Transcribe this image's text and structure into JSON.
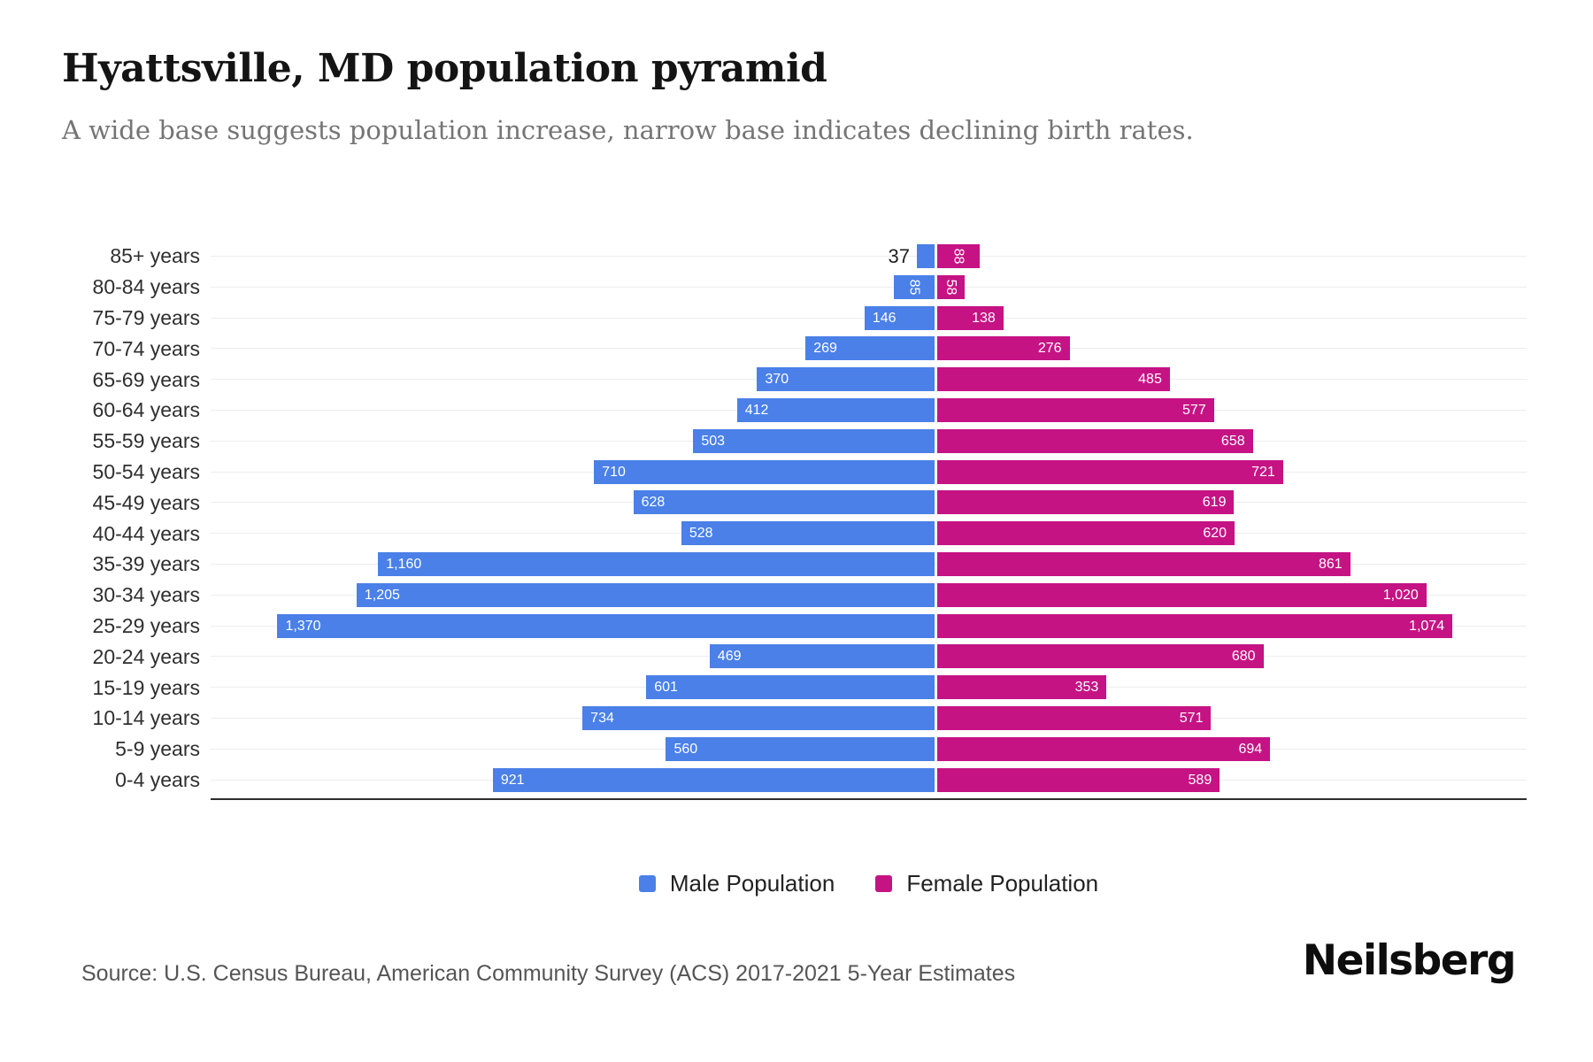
{
  "header": {
    "title": "Hyattsville, MD population pyramid",
    "subtitle": "A wide base suggests population increase, narrow base indicates declining birth rates."
  },
  "legend": {
    "male_label": "Male Population",
    "female_label": "Female Population"
  },
  "footer": {
    "source": "Source: U.S. Census Bureau, American Community Survey (ACS) 2017-2021 5-Year Estimates",
    "brand": "Neilsberg"
  },
  "colors": {
    "male": "#4a80e8",
    "female": "#c51384",
    "gridline": "#ededed",
    "axis": "#2d2d2d",
    "label_in_bar": "#ffffff",
    "label_outside": "#1f1f1f"
  },
  "chart_data": {
    "type": "bar",
    "variant": "population-pyramid",
    "title": "Hyattsville, MD population pyramid",
    "xlabel": "Population",
    "ylabel": "Age group",
    "grid": true,
    "legend_position": "bottom",
    "categories": [
      "85+ years",
      "80-84 years",
      "75-79 years",
      "70-74 years",
      "65-69 years",
      "60-64 years",
      "55-59 years",
      "50-54 years",
      "45-49 years",
      "40-44 years",
      "35-39 years",
      "30-34 years",
      "25-29 years",
      "20-24 years",
      "15-19 years",
      "10-14 years",
      "5-9 years",
      "0-4 years"
    ],
    "series": [
      {
        "name": "Male Population",
        "side": "left",
        "color": "#4a80e8",
        "values": [
          37,
          85,
          146,
          269,
          370,
          412,
          503,
          710,
          628,
          528,
          1160,
          1205,
          1370,
          469,
          601,
          734,
          560,
          921
        ]
      },
      {
        "name": "Female Population",
        "side": "right",
        "color": "#c51384",
        "values": [
          88,
          58,
          138,
          276,
          485,
          577,
          658,
          721,
          619,
          620,
          861,
          1020,
          1074,
          680,
          353,
          571,
          694,
          589
        ]
      }
    ],
    "xlim_left_side": [
      0,
      1510
    ],
    "xlim_right_side": [
      0,
      1230
    ]
  }
}
